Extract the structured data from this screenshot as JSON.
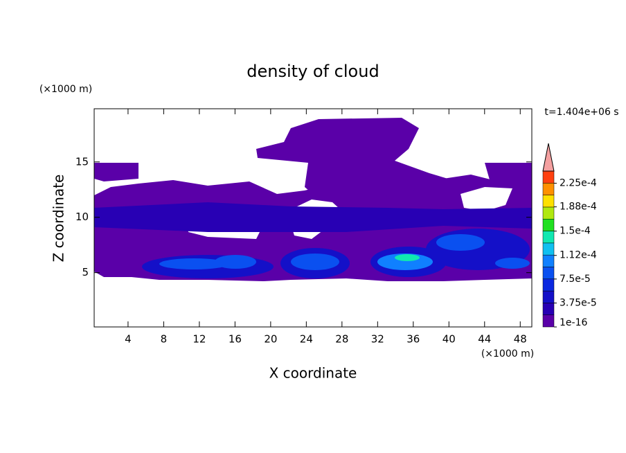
{
  "chart_data": {
    "type": "contour",
    "title": "density of cloud",
    "x_label": "X coordinate",
    "y_label": "Z coordinate",
    "x_unit": "(×1000 m)",
    "y_unit": "(×1000 m)",
    "time_label": "t=1.404e+06 s",
    "xlim": [
      0.2,
      49.3
    ],
    "xticks": [
      4,
      8,
      12,
      16,
      20,
      24,
      28,
      32,
      36,
      40,
      44,
      48
    ],
    "ylim": [
      0.1,
      19.8
    ],
    "yticks": [
      5,
      10,
      15
    ],
    "colorbar": {
      "lim": [
        0,
        0.000244
      ],
      "ticks": [
        {
          "value": 1e-16,
          "label": "1e-16"
        },
        {
          "value": 3.75e-05,
          "label": "3.75e-5"
        },
        {
          "value": 7.5e-05,
          "label": "7.5e-5"
        },
        {
          "value": 0.000112,
          "label": "1.12e-4"
        },
        {
          "value": 0.00015,
          "label": "1.5e-4"
        },
        {
          "value": 0.000188,
          "label": "1.88e-4"
        },
        {
          "value": 0.000225,
          "label": "2.25e-4"
        }
      ],
      "colors": [
        "#5a00a8",
        "#2800b4",
        "#1410c8",
        "#0a28e0",
        "#0a50f0",
        "#1080ff",
        "#10c0f0",
        "#10e8b0",
        "#20e020",
        "#b0e810",
        "#ffe000",
        "#ff9000",
        "#ff4010"
      ],
      "extend_color": "#f4a0a0"
    }
  }
}
